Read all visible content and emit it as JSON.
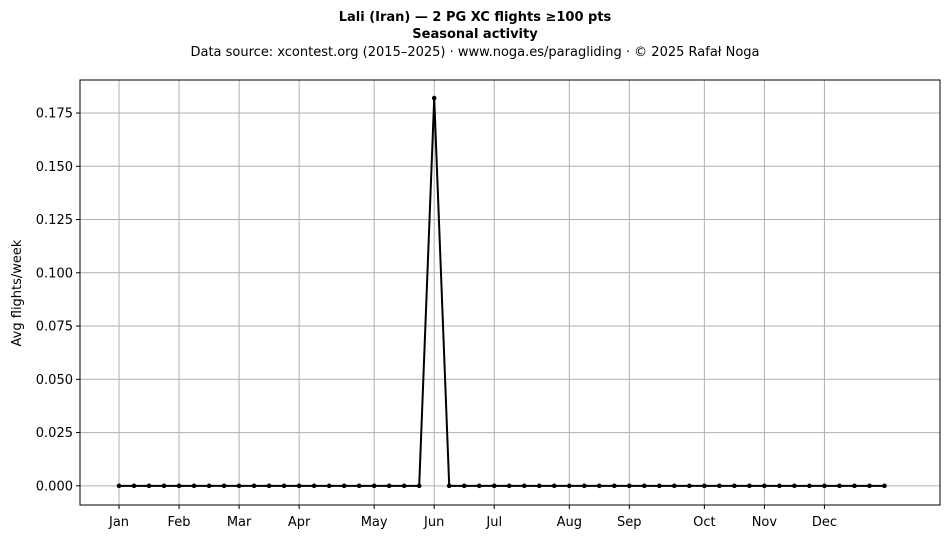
{
  "chart_data": {
    "type": "line",
    "title_line1": "Lali (Iran)  —  2 PG XC flights ≥100 pts",
    "title_line2": "Seasonal activity",
    "subtitle": "Data source: xcontest.org (2015–2025)  ·  www.noga.es/paragliding  ·  © 2025 Rafał Noga",
    "xlabel": "",
    "ylabel": "Avg flights/week",
    "ylim": [
      -0.009,
      0.1905
    ],
    "yticks": [
      0.0,
      0.025,
      0.05,
      0.075,
      0.1,
      0.125,
      0.15,
      0.175
    ],
    "ytick_labels": [
      "0.000",
      "0.025",
      "0.050",
      "0.075",
      "0.100",
      "0.125",
      "0.150",
      "0.175"
    ],
    "xlim": [
      -2.6,
      54.7
    ],
    "month_ticks": [
      {
        "label": "Jan",
        "x": 0
      },
      {
        "label": "Feb",
        "x": 4
      },
      {
        "label": "Mar",
        "x": 8
      },
      {
        "label": "Apr",
        "x": 12
      },
      {
        "label": "May",
        "x": 17
      },
      {
        "label": "Jun",
        "x": 21
      },
      {
        "label": "Jul",
        "x": 25
      },
      {
        "label": "Aug",
        "x": 30
      },
      {
        "label": "Sep",
        "x": 34
      },
      {
        "label": "Oct",
        "x": 39
      },
      {
        "label": "Nov",
        "x": 43
      },
      {
        "label": "Dec",
        "x": 47
      }
    ],
    "grid": true,
    "series": [
      {
        "name": "",
        "color": "#000000",
        "x": [
          0,
          1,
          2,
          3,
          4,
          5,
          6,
          7,
          8,
          9,
          10,
          11,
          12,
          13,
          14,
          15,
          16,
          17,
          18,
          19,
          20,
          21,
          22,
          23,
          24,
          25,
          26,
          27,
          28,
          29,
          30,
          31,
          32,
          33,
          34,
          35,
          36,
          37,
          38,
          39,
          40,
          41,
          42,
          43,
          44,
          45,
          46,
          47,
          48,
          49,
          50,
          51
        ],
        "values": [
          0,
          0,
          0,
          0,
          0,
          0,
          0,
          0,
          0,
          0,
          0,
          0,
          0,
          0,
          0,
          0,
          0,
          0,
          0,
          0,
          0,
          0.182,
          0,
          0,
          0,
          0,
          0,
          0,
          0,
          0,
          0,
          0,
          0,
          0,
          0,
          0,
          0,
          0,
          0,
          0,
          0,
          0,
          0,
          0,
          0,
          0,
          0,
          0,
          0,
          0,
          0,
          0
        ]
      }
    ]
  }
}
